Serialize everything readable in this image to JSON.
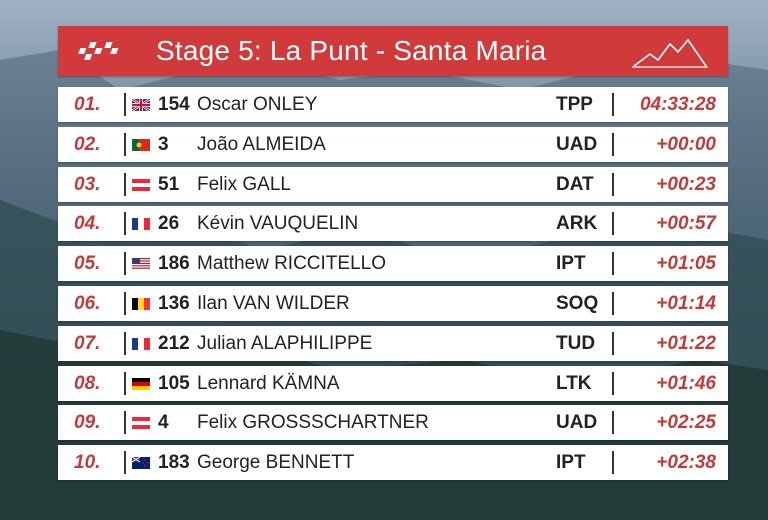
{
  "header": {
    "title": "Stage 5: La Punt - Santa Maria"
  },
  "colors": {
    "accent": "#d03a3a",
    "time": "#c43a3a"
  },
  "results": [
    {
      "pos": "01.",
      "flag": "gb",
      "bib": "154",
      "name": "Oscar ONLEY",
      "team": "TPP",
      "time": "04:33:28"
    },
    {
      "pos": "02.",
      "flag": "pt",
      "bib": "3",
      "name": "João ALMEIDA",
      "team": "UAD",
      "time": "+00:00"
    },
    {
      "pos": "03.",
      "flag": "at",
      "bib": "51",
      "name": "Felix GALL",
      "team": "DAT",
      "time": "+00:23"
    },
    {
      "pos": "04.",
      "flag": "fr",
      "bib": "26",
      "name": "Kévin VAUQUELIN",
      "team": "ARK",
      "time": "+00:57"
    },
    {
      "pos": "05.",
      "flag": "us",
      "bib": "186",
      "name": "Matthew RICCITELLO",
      "team": "IPT",
      "time": "+01:05"
    },
    {
      "pos": "06.",
      "flag": "be",
      "bib": "136",
      "name": "Ilan VAN WILDER",
      "team": "SOQ",
      "time": "+01:14"
    },
    {
      "pos": "07.",
      "flag": "fr",
      "bib": "212",
      "name": "Julian ALAPHILIPPE",
      "team": "TUD",
      "time": "+01:22"
    },
    {
      "pos": "08.",
      "flag": "de",
      "bib": "105",
      "name": "Lennard KÄMNA",
      "team": "LTK",
      "time": "+01:46"
    },
    {
      "pos": "09.",
      "flag": "at",
      "bib": "4",
      "name": "Felix GROSSSCHARTNER",
      "team": "UAD",
      "time": "+02:25"
    },
    {
      "pos": "10.",
      "flag": "nz",
      "bib": "183",
      "name": "George BENNETT",
      "team": "IPT",
      "time": "+02:38"
    }
  ]
}
